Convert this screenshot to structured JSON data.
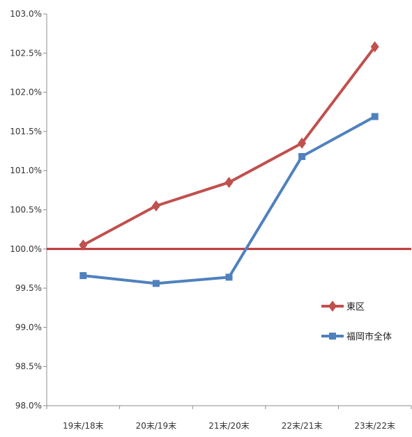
{
  "chart_data": {
    "type": "line",
    "categories": [
      "19末/18末",
      "20末/19末",
      "21末/20末",
      "22末/21末",
      "23末/22末"
    ],
    "series": [
      {
        "name": "東区",
        "values": [
          100.05,
          100.55,
          100.85,
          101.35,
          102.58
        ],
        "color": "#c0504d",
        "marker": "diamond"
      },
      {
        "name": "福岡市全体",
        "values": [
          99.66,
          99.56,
          99.64,
          101.18,
          101.69
        ],
        "color": "#4f81bd",
        "marker": "square"
      }
    ],
    "reference_line": {
      "value": 100.0,
      "color": "#b83232"
    },
    "ylim": [
      98.0,
      103.0
    ],
    "ytick_step": 0.5,
    "ytick_suffix": "%",
    "ytick_decimals": 1,
    "grid": false,
    "legend_position": "right"
  }
}
